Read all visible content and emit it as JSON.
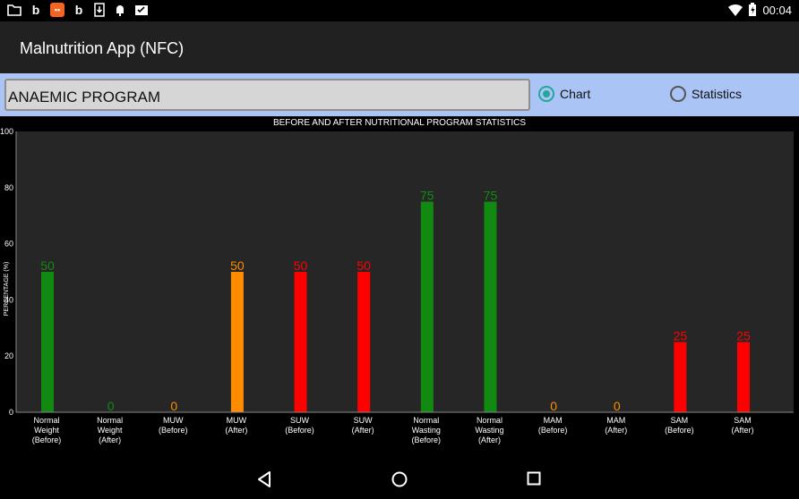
{
  "status_bar": {
    "left_icons": [
      "folder-icon",
      "b-app-icon",
      "orange-app-icon",
      "b-app-icon",
      "download-icon",
      "android-debug-icon",
      "checklist-icon"
    ],
    "time": "00:04"
  },
  "app_bar": {
    "title": "Malnutrition App (NFC)"
  },
  "controls": {
    "program": "ANAEMIC PROGRAM",
    "radio_chart": "Chart",
    "radio_statistics": "Statistics",
    "selected": "Chart"
  },
  "chart_data": {
    "type": "bar",
    "title": "BEFORE AND AFTER NUTRITIONAL PROGRAM STATISTICS",
    "ylabel": "PERCENTAGE (%)",
    "xlabel": "",
    "ylim": [
      0,
      100
    ],
    "yticks": [
      0,
      20,
      40,
      60,
      80,
      100
    ],
    "grid": false,
    "categories": [
      [
        "Normal",
        "Weight",
        "(Before)"
      ],
      [
        "Normal",
        "Weight",
        "(After)"
      ],
      [
        "MUW",
        "(Before)"
      ],
      [
        "MUW",
        "(After)"
      ],
      [
        "SUW",
        "(Before)"
      ],
      [
        "SUW",
        "(After)"
      ],
      [
        "Normal",
        "Wasting",
        "(Before)"
      ],
      [
        "Normal",
        "Wasting",
        "(After)"
      ],
      [
        "MAM",
        "(Before)"
      ],
      [
        "MAM",
        "(After)"
      ],
      [
        "SAM",
        "(Before)"
      ],
      [
        "SAM",
        "(After)"
      ]
    ],
    "values": [
      50,
      0,
      0,
      50,
      50,
      50,
      75,
      75,
      0,
      0,
      25,
      25
    ],
    "colors": [
      "#128a12",
      "#128a12",
      "#ff8c00",
      "#ff8c00",
      "#ff0000",
      "#ff0000",
      "#128a12",
      "#128a12",
      "#ff8c00",
      "#ff8c00",
      "#ff0000",
      "#ff0000"
    ]
  },
  "nav_bar": {
    "icons": [
      "back-icon",
      "home-icon",
      "recents-icon"
    ]
  }
}
